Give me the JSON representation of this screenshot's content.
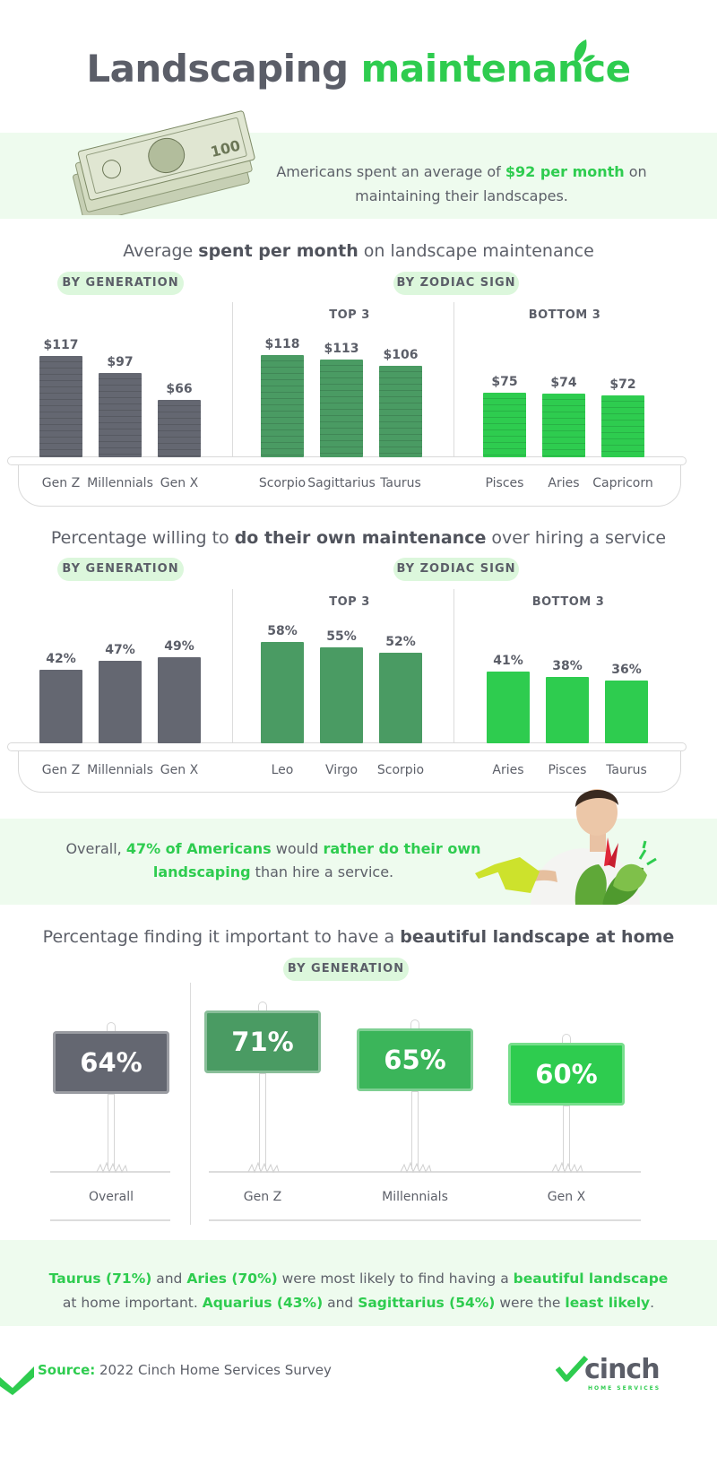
{
  "title": {
    "part1": "Landscaping",
    "part2": "maintenance"
  },
  "intro": {
    "text_a": "Americans spent an average of ",
    "highlight": "$92 per month",
    "text_b": " on maintaining their landscapes."
  },
  "section1": {
    "title_a": "Average ",
    "title_b": "spent per month",
    "title_c": " on landscape maintenance",
    "pill_generation": "BY GENERATION",
    "pill_zodiac": "BY ZODIAC SIGN",
    "top_label": "TOP 3",
    "bottom_label": "BOTTOM 3"
  },
  "section2": {
    "title_a": "Percentage willing to ",
    "title_b": "do their own maintenance",
    "title_c": " over hiring a service",
    "pill_generation": "BY GENERATION",
    "pill_zodiac": "BY ZODIAC SIGN",
    "top_label": "TOP 3",
    "bottom_label": "BOTTOM 3"
  },
  "callout": {
    "a": "Overall, ",
    "b": "47% of Americans",
    "c": " would ",
    "d": "rather do their own landscaping",
    "e": " than hire a service."
  },
  "section3": {
    "title_a": "Percentage finding it important to have a ",
    "title_b": "beautiful landscape at home",
    "pill_generation": "BY GENERATION"
  },
  "footer": {
    "a": "Taurus (71%)",
    "b": " and ",
    "c": "Aries (70%)",
    "d": " were most likely to find having a ",
    "e": "beautiful landscape",
    "f": " at home important. ",
    "g": "Aquarius (43%)",
    "h": " and ",
    "i": "Sagittarius (54%)",
    "j": " were the ",
    "k": "least likely",
    "l": "."
  },
  "source": {
    "label": "Source:",
    "text": " 2022 Cinch Home Services Survey"
  },
  "logo": {
    "name": "cinch",
    "sub": "HOME SERVICES"
  },
  "colors": {
    "gray": "#646771",
    "dark_green": "#4a9b63",
    "bright_green": "#2ecc4f",
    "mid_green": "#3bb55a"
  },
  "chart_data": [
    {
      "type": "bar",
      "title": "Average spent per month on landscape maintenance",
      "groups": [
        {
          "name": "BY GENERATION",
          "categories": [
            "Gen Z",
            "Millennials",
            "Gen X"
          ],
          "values": [
            117,
            97,
            66
          ],
          "labels": [
            "$117",
            "$97",
            "$66"
          ]
        },
        {
          "name": "TOP 3",
          "categories": [
            "Scorpio",
            "Sagittarius",
            "Taurus"
          ],
          "values": [
            118,
            113,
            106
          ],
          "labels": [
            "$118",
            "$113",
            "$106"
          ]
        },
        {
          "name": "BOTTOM 3",
          "categories": [
            "Pisces",
            "Aries",
            "Capricorn"
          ],
          "values": [
            75,
            74,
            72
          ],
          "labels": [
            "$75",
            "$74",
            "$72"
          ]
        }
      ]
    },
    {
      "type": "bar",
      "title": "Percentage willing to do their own maintenance over hiring a service",
      "groups": [
        {
          "name": "BY GENERATION",
          "categories": [
            "Gen Z",
            "Millennials",
            "Gen X"
          ],
          "values": [
            42,
            47,
            49
          ],
          "labels": [
            "42%",
            "47%",
            "49%"
          ]
        },
        {
          "name": "TOP 3",
          "categories": [
            "Leo",
            "Virgo",
            "Scorpio"
          ],
          "values": [
            58,
            55,
            52
          ],
          "labels": [
            "58%",
            "55%",
            "52%"
          ]
        },
        {
          "name": "BOTTOM 3",
          "categories": [
            "Aries",
            "Pisces",
            "Taurus"
          ],
          "values": [
            41,
            38,
            36
          ],
          "labels": [
            "41%",
            "38%",
            "36%"
          ]
        }
      ]
    },
    {
      "type": "bar",
      "title": "Percentage finding it important to have a beautiful landscape at home",
      "categories": [
        "Overall",
        "Gen Z",
        "Millennials",
        "Gen X"
      ],
      "values": [
        64,
        71,
        65,
        60
      ],
      "labels": [
        "64%",
        "71%",
        "65%",
        "60%"
      ]
    }
  ]
}
